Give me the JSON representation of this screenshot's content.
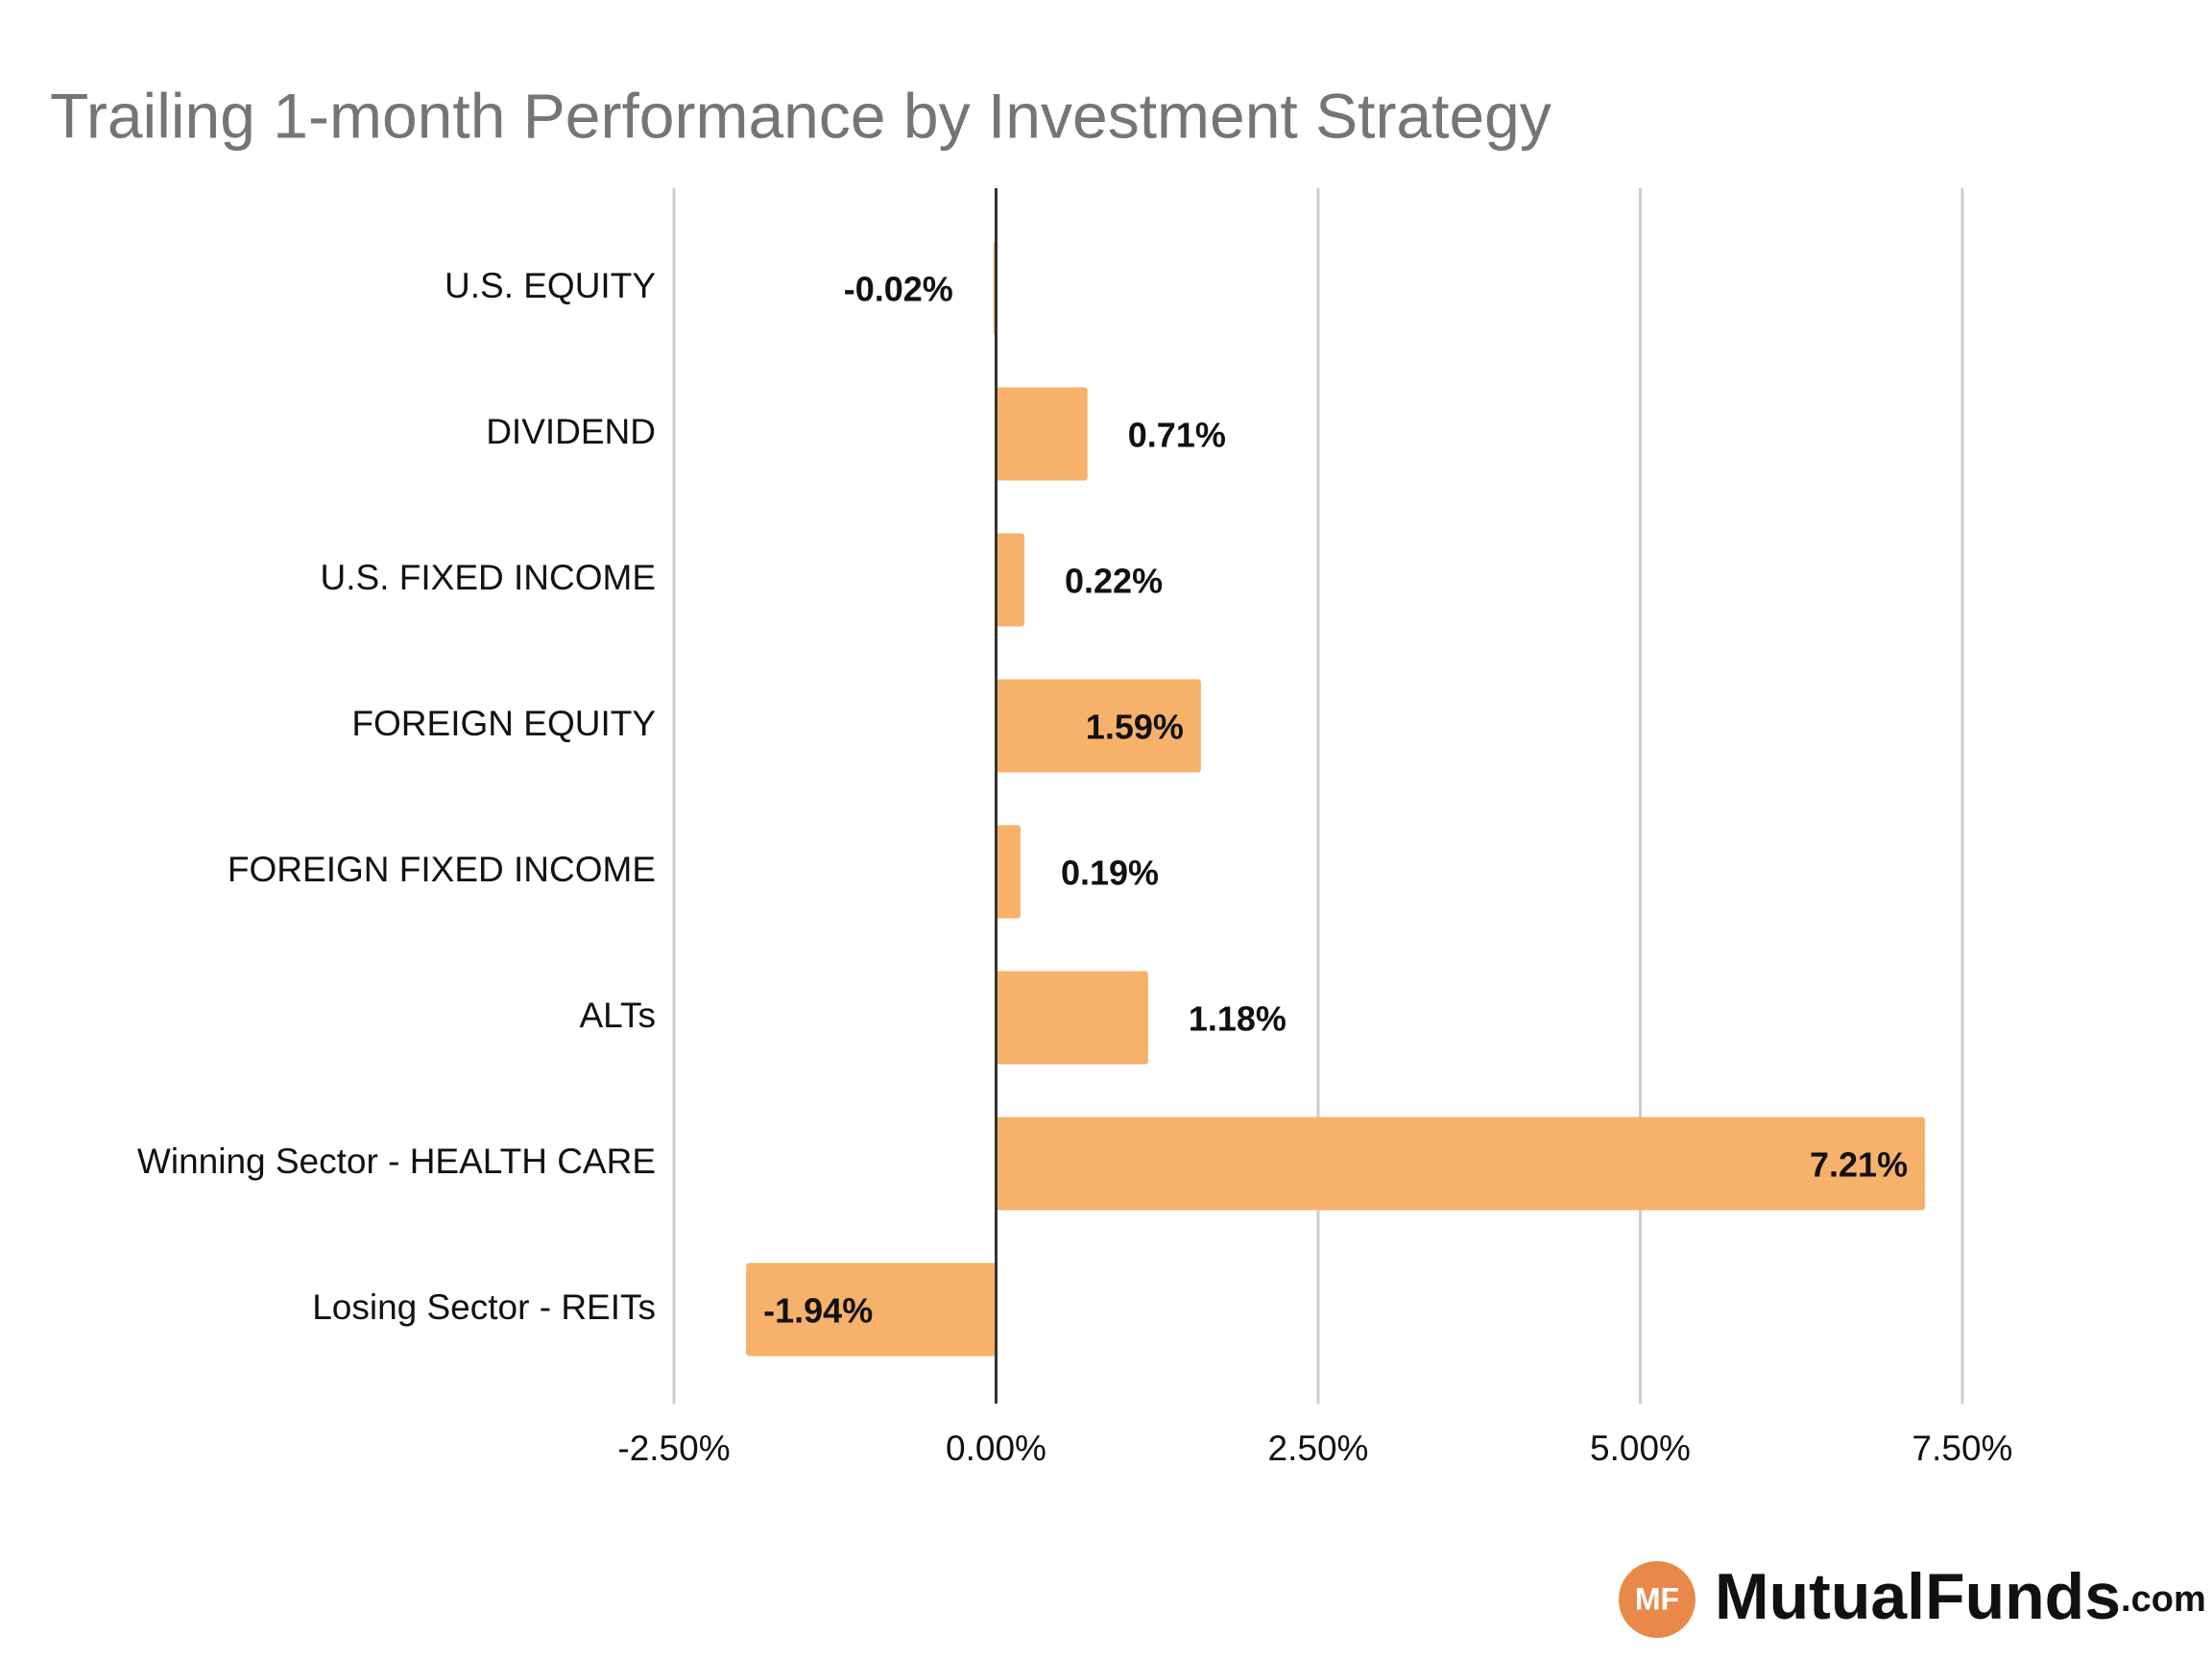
{
  "chart_data": {
    "type": "hbar",
    "title": "Trailing 1-month Performance by Investment Strategy",
    "categories": [
      "U.S. EQUITY",
      "DIVIDEND",
      "U.S. FIXED INCOME",
      "FOREIGN EQUITY",
      "FOREIGN FIXED INCOME",
      "ALTs",
      "Winning Sector - HEALTH CARE",
      "Losing Sector - REITs"
    ],
    "values": [
      -0.02,
      0.71,
      0.22,
      1.59,
      0.19,
      1.18,
      7.21,
      -1.94
    ],
    "value_labels": [
      "-0.02%",
      "0.71%",
      "0.22%",
      "1.59%",
      "0.19%",
      "1.18%",
      "7.21%",
      "-1.94%"
    ],
    "color": "#f6b26b",
    "xlim": [
      -2.5,
      7.5
    ],
    "xticks": [
      {
        "value": -2.5,
        "label": "-2.50%"
      },
      {
        "value": 0,
        "label": "0.00%"
      },
      {
        "value": 2.5,
        "label": "2.50%"
      },
      {
        "value": 5,
        "label": "5.00%"
      },
      {
        "value": 7.5,
        "label": "7.50%"
      }
    ],
    "grid": true
  },
  "logo": {
    "badge": "MF",
    "name": "MutualFunds",
    "suffix": ".com"
  }
}
